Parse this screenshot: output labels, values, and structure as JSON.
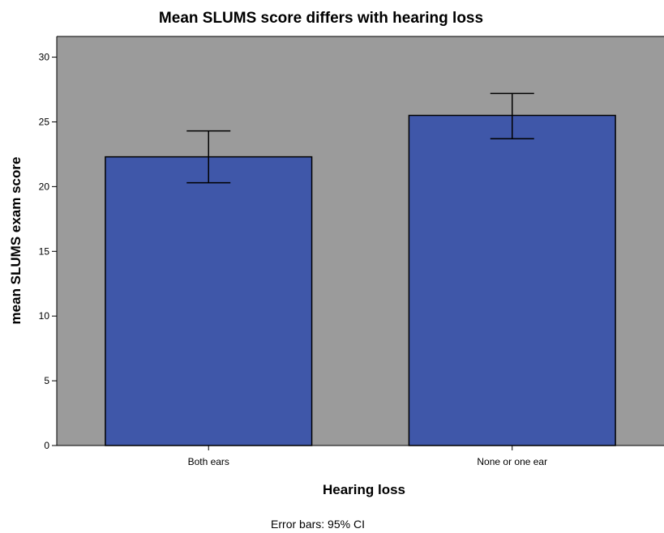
{
  "chart_data": {
    "type": "bar",
    "title": "Mean SLUMS score differs with hearing loss",
    "xlabel": "Hearing loss",
    "ylabel": "mean SLUMS exam score",
    "categories": [
      "Both ears",
      "None or one ear"
    ],
    "values": [
      22.3,
      25.5
    ],
    "error_bars": [
      {
        "low": 20.3,
        "high": 24.3
      },
      {
        "low": 23.7,
        "high": 27.2
      }
    ],
    "ylim": [
      0,
      31.6
    ],
    "yticks": [
      0,
      5,
      10,
      15,
      20,
      25,
      30
    ],
    "grid": false,
    "legend": "none",
    "note": "Error bars: 95% CI",
    "colors": {
      "plot_background": "#9b9b9b",
      "bar_fill": "#3f57a9",
      "bar_stroke": "#000000",
      "error_bar": "#000000"
    }
  }
}
